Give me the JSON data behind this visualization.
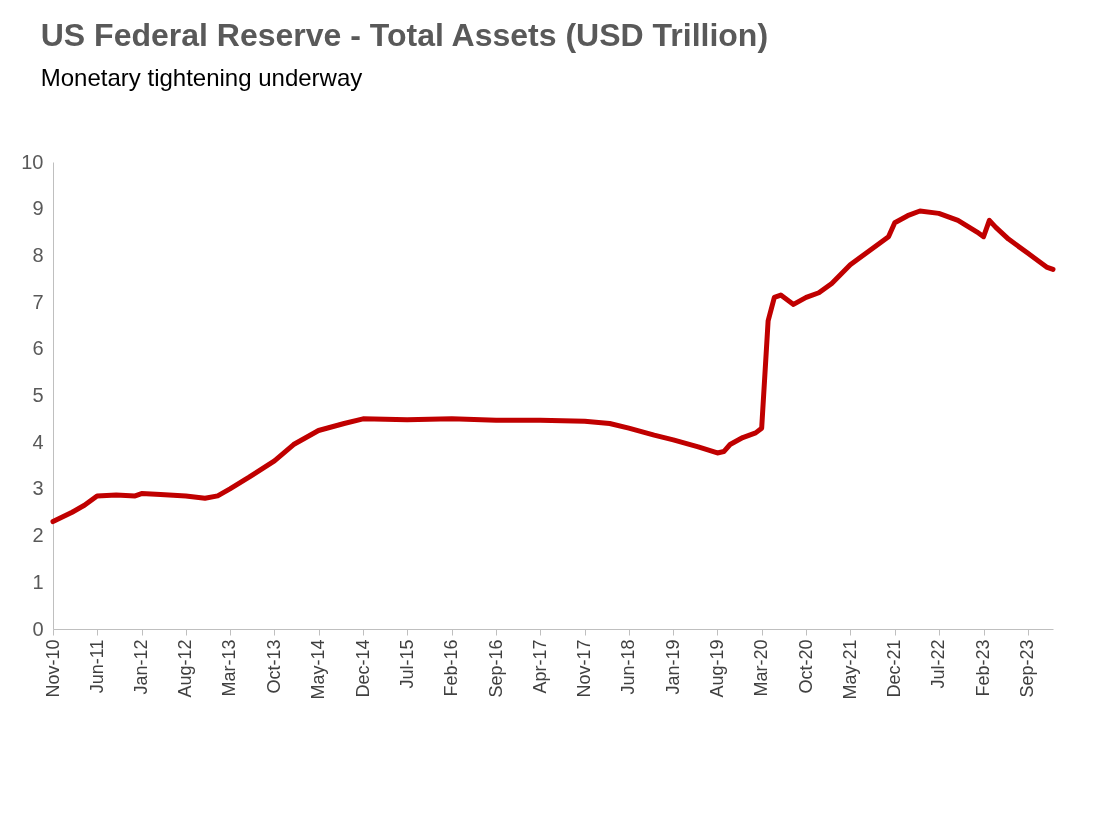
{
  "chart_data": {
    "type": "line",
    "title": "US Federal Reserve - Total Assets (USD Trillion)",
    "subtitle": "Monetary tightening underway",
    "x": [
      "2010-11",
      "2011-02",
      "2011-04",
      "2011-06",
      "2011-09",
      "2011-12",
      "2012-01",
      "2012-04",
      "2012-08",
      "2012-11",
      "2013-01",
      "2013-03",
      "2013-06",
      "2013-10",
      "2014-01",
      "2014-05",
      "2014-09",
      "2014-12",
      "2015-07",
      "2016-02",
      "2016-09",
      "2017-04",
      "2017-11",
      "2018-03",
      "2018-06",
      "2018-10",
      "2019-01",
      "2019-05",
      "2019-08",
      "2019-09",
      "2019-10",
      "2019-12",
      "2020-02",
      "2020-03",
      "2020-04",
      "2020-05",
      "2020-06",
      "2020-08",
      "2020-10",
      "2020-12",
      "2021-02",
      "2021-05",
      "2021-08",
      "2021-11",
      "2021-12",
      "2022-02",
      "2022-04",
      "2022-07",
      "2022-10",
      "2023-01",
      "2023-02",
      "2023-03",
      "2023-04",
      "2023-06",
      "2023-09",
      "2023-12",
      "2024-01"
    ],
    "series": [
      {
        "color": "#c00000",
        "values": [
          2.3,
          2.5,
          2.65,
          2.85,
          2.87,
          2.85,
          2.9,
          2.88,
          2.85,
          2.8,
          2.85,
          3.0,
          3.25,
          3.6,
          3.95,
          4.25,
          4.4,
          4.5,
          4.48,
          4.5,
          4.47,
          4.47,
          4.45,
          4.4,
          4.3,
          4.15,
          4.05,
          3.9,
          3.77,
          3.8,
          3.95,
          4.1,
          4.2,
          4.3,
          6.6,
          7.1,
          7.15,
          6.95,
          7.1,
          7.2,
          7.4,
          7.8,
          8.1,
          8.4,
          8.7,
          8.85,
          8.95,
          8.9,
          8.75,
          8.5,
          8.4,
          8.75,
          8.6,
          8.35,
          8.05,
          7.75,
          7.7
        ]
      }
    ],
    "xlim": [
      "2010-11",
      "2024-01"
    ],
    "xticks": [
      {
        "value": "2010-11",
        "label": "Nov-10"
      },
      {
        "value": "2011-06",
        "label": "Jun-11"
      },
      {
        "value": "2012-01",
        "label": "Jan-12"
      },
      {
        "value": "2012-08",
        "label": "Aug-12"
      },
      {
        "value": "2013-03",
        "label": "Mar-13"
      },
      {
        "value": "2013-10",
        "label": "Oct-13"
      },
      {
        "value": "2014-05",
        "label": "May-14"
      },
      {
        "value": "2014-12",
        "label": "Dec-14"
      },
      {
        "value": "2015-07",
        "label": "Jul-15"
      },
      {
        "value": "2016-02",
        "label": "Feb-16"
      },
      {
        "value": "2016-09",
        "label": "Sep-16"
      },
      {
        "value": "2017-04",
        "label": "Apr-17"
      },
      {
        "value": "2017-11",
        "label": "Nov-17"
      },
      {
        "value": "2018-06",
        "label": "Jun-18"
      },
      {
        "value": "2019-01",
        "label": "Jan-19"
      },
      {
        "value": "2019-08",
        "label": "Aug-19"
      },
      {
        "value": "2020-03",
        "label": "Mar-20"
      },
      {
        "value": "2020-10",
        "label": "Oct-20"
      },
      {
        "value": "2021-05",
        "label": "May-21"
      },
      {
        "value": "2021-12",
        "label": "Dec-21"
      },
      {
        "value": "2022-07",
        "label": "Jul-22"
      },
      {
        "value": "2023-02",
        "label": "Feb-23"
      },
      {
        "value": "2023-09",
        "label": "Sep-23"
      }
    ],
    "ylim": [
      0,
      10
    ],
    "yticks": [
      0,
      1,
      2,
      3,
      4,
      5,
      6,
      7,
      8,
      9,
      10
    ],
    "grid": false,
    "line_style": "solid",
    "marker": "none"
  }
}
